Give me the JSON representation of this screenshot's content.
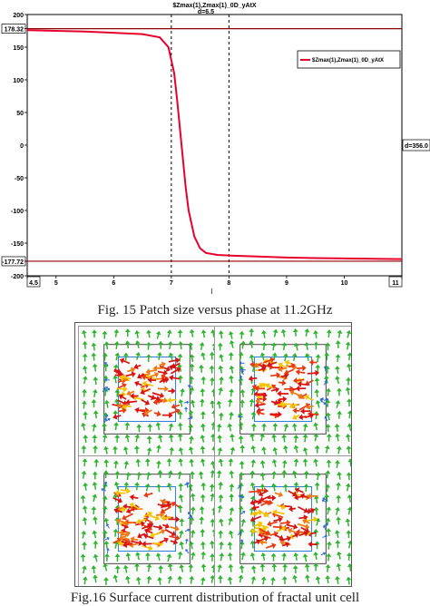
{
  "chart_data": {
    "type": "line",
    "title": "$Zmax(1),Zmax(1)_0D_yAtX",
    "marker_label": "d=6.5",
    "xlabel": "l",
    "ylabel": "",
    "xlim": [
      4.5,
      11
    ],
    "ylim": [
      -200,
      200
    ],
    "x_ticks": [
      "4.5",
      "5",
      "6",
      "7",
      "8",
      "9",
      "10",
      "11"
    ],
    "y_ticks": [
      "200",
      "178.32",
      "150",
      "100",
      "50",
      "0",
      "-50",
      "-100",
      "-150",
      "-177.72",
      "-200"
    ],
    "hlines": [
      178.32,
      -177.72
    ],
    "vlines": [
      7,
      8
    ],
    "right_marker": "d=356.0",
    "series": [
      {
        "name": "$Zmax(1),Zmax(1)_0D_yAtX",
        "color": "#e8002d",
        "x": [
          4.5,
          5,
          5.5,
          6,
          6.5,
          6.8,
          6.95,
          7.05,
          7.1,
          7.15,
          7.2,
          7.25,
          7.3,
          7.4,
          7.5,
          7.6,
          7.8,
          8,
          8.5,
          9,
          9.5,
          10,
          10.5,
          11
        ],
        "y": [
          176,
          175,
          174,
          172,
          170,
          165,
          150,
          110,
          70,
          25,
          -20,
          -65,
          -100,
          -140,
          -158,
          -165,
          -168,
          -169,
          -170.5,
          -172,
          -173,
          -173.5,
          -174,
          -174.5
        ]
      }
    ],
    "legend_position": "top-right"
  },
  "captions": {
    "fig15": "Fig. 15 Patch size versus phase at 11.2GHz",
    "fig16": "Fig.16 Surface current distribution of fractal unit cell"
  }
}
